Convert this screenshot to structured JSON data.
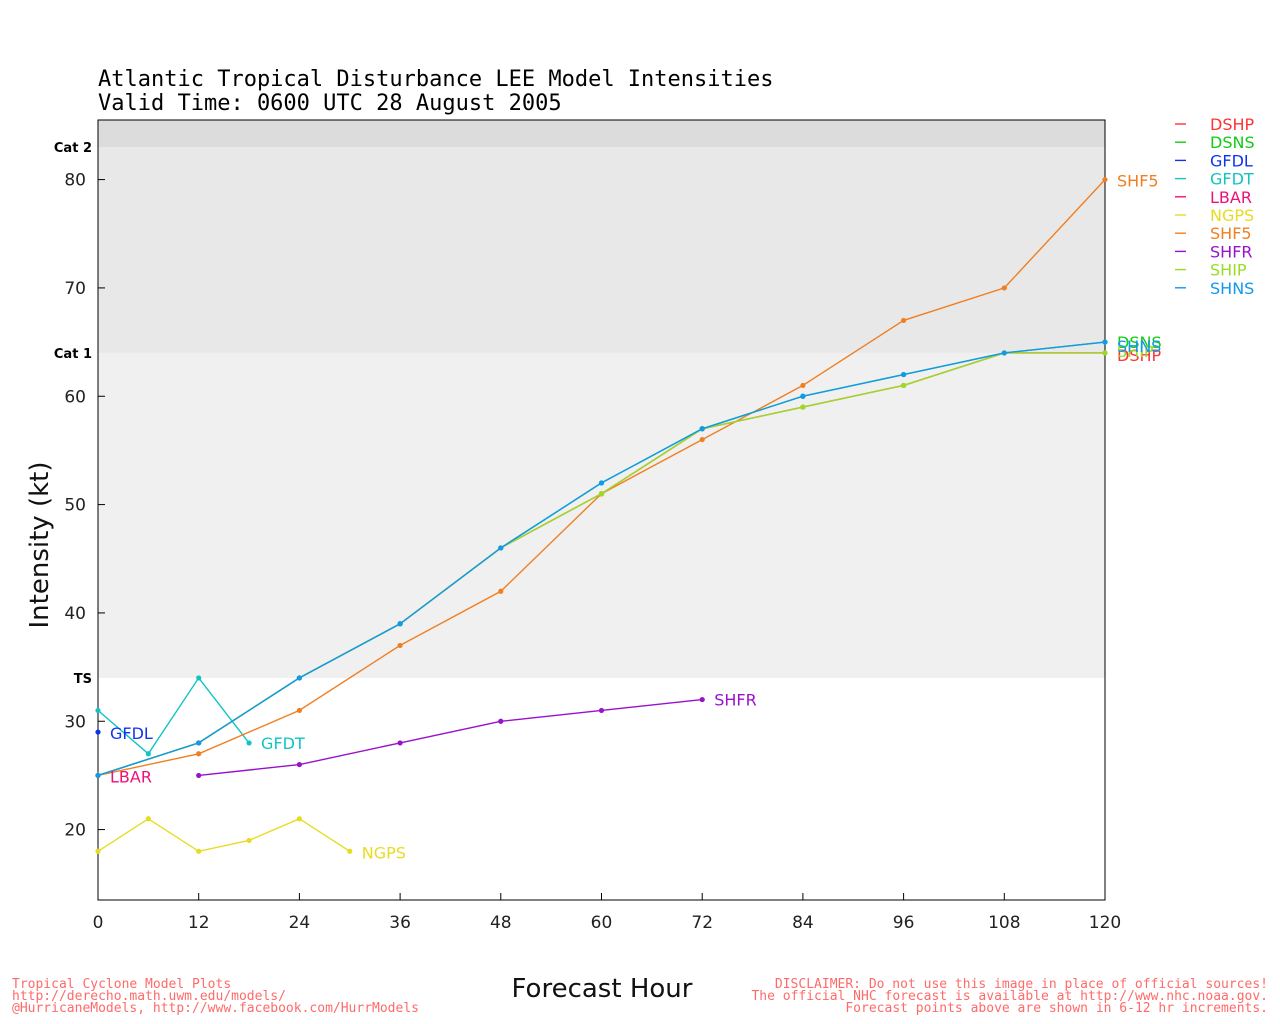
{
  "chart_data": {
    "type": "line",
    "title": "Atlantic Tropical Disturbance LEE Model Intensities",
    "subtitle": "Valid Time: 0600 UTC 28 August 2005",
    "xlabel": "Forecast Hour",
    "ylabel": "Intensity (kt)",
    "xlim": [
      0,
      120
    ],
    "ylim": [
      13.5,
      85.5
    ],
    "xticks": [
      0,
      12,
      24,
      36,
      48,
      60,
      72,
      84,
      96,
      108,
      120
    ],
    "yticks": [
      20,
      30,
      40,
      50,
      60,
      70,
      80
    ],
    "grid": false,
    "legend_position": "right",
    "bands": [
      {
        "label": "TS",
        "from": 34,
        "to": 64,
        "color": "#f0f0f0"
      },
      {
        "label": "Cat 1",
        "from": 64,
        "to": 83,
        "color": "#e8e8e8"
      },
      {
        "label": "Cat 2",
        "from": 83,
        "to": 85.5,
        "color": "#dcdcdc"
      }
    ],
    "series": [
      {
        "name": "DSHP",
        "color": "#ff3333",
        "end_label": "DSHP",
        "points": [
          [
            0,
            25
          ],
          [
            12,
            28
          ],
          [
            24,
            34
          ],
          [
            36,
            39
          ],
          [
            48,
            46
          ],
          [
            60,
            51
          ],
          [
            72,
            57
          ],
          [
            84,
            59
          ],
          [
            96,
            61
          ],
          [
            108,
            64
          ],
          [
            120,
            64
          ]
        ]
      },
      {
        "name": "DSNS",
        "color": "#11cc11",
        "end_label": "DSNS",
        "points": [
          [
            0,
            25
          ],
          [
            12,
            28
          ],
          [
            24,
            34
          ],
          [
            36,
            39
          ],
          [
            48,
            46
          ],
          [
            60,
            52
          ],
          [
            72,
            57
          ],
          [
            84,
            60
          ],
          [
            96,
            62
          ],
          [
            108,
            64
          ],
          [
            120,
            65
          ]
        ]
      },
      {
        "name": "GFDL",
        "color": "#1133ee",
        "end_label": "GFDL",
        "points": [
          [
            0,
            29
          ]
        ]
      },
      {
        "name": "GFDT",
        "color": "#11c4c4",
        "end_label": "GFDT",
        "points": [
          [
            0,
            31
          ],
          [
            6,
            27
          ],
          [
            12,
            34
          ],
          [
            18,
            28
          ]
        ]
      },
      {
        "name": "LBAR",
        "color": "#ee1177",
        "end_label": "LBAR",
        "points": [
          [
            0,
            25
          ]
        ]
      },
      {
        "name": "NGPS",
        "color": "#e8dc22",
        "end_label": "NGPS",
        "points": [
          [
            0,
            18
          ],
          [
            6,
            21
          ],
          [
            12,
            18
          ],
          [
            18,
            19
          ],
          [
            24,
            21
          ],
          [
            30,
            18
          ]
        ]
      },
      {
        "name": "SHF5",
        "color": "#f07f22",
        "end_label": "SHF5",
        "points": [
          [
            0,
            25
          ],
          [
            12,
            27
          ],
          [
            24,
            31
          ],
          [
            36,
            37
          ],
          [
            48,
            42
          ],
          [
            60,
            51
          ],
          [
            72,
            56
          ],
          [
            84,
            61
          ],
          [
            96,
            67
          ],
          [
            108,
            70
          ],
          [
            120,
            80
          ]
        ]
      },
      {
        "name": "SHFR",
        "color": "#9911cc",
        "end_label": "SHFR",
        "points": [
          [
            12,
            25
          ],
          [
            24,
            26
          ],
          [
            36,
            28
          ],
          [
            48,
            30
          ],
          [
            60,
            31
          ],
          [
            72,
            32
          ]
        ]
      },
      {
        "name": "SHIP",
        "color": "#99dd22",
        "end_label": "SHIP",
        "points": [
          [
            0,
            25
          ],
          [
            12,
            28
          ],
          [
            24,
            34
          ],
          [
            36,
            39
          ],
          [
            48,
            46
          ],
          [
            60,
            51
          ],
          [
            72,
            57
          ],
          [
            84,
            59
          ],
          [
            96,
            61
          ],
          [
            108,
            64
          ],
          [
            120,
            64
          ]
        ]
      },
      {
        "name": "SHNS",
        "color": "#1199ee",
        "end_label": "SHNS",
        "points": [
          [
            0,
            25
          ],
          [
            12,
            28
          ],
          [
            24,
            34
          ],
          [
            36,
            39
          ],
          [
            48,
            46
          ],
          [
            60,
            52
          ],
          [
            72,
            57
          ],
          [
            84,
            60
          ],
          [
            96,
            62
          ],
          [
            108,
            64
          ],
          [
            120,
            65
          ]
        ]
      }
    ]
  },
  "footer": {
    "left": [
      "Tropical Cyclone Model Plots",
      "http://derecho.math.uwm.edu/models/",
      "@HurricaneModels, http://www.facebook.com/HurrModels"
    ],
    "right": [
      "DISCLAIMER: Do not use this image in place of official sources!",
      "The official NHC forecast is available at http://www.nhc.noaa.gov.",
      "Forecast points above are shown in 6-12 hr increments."
    ]
  }
}
